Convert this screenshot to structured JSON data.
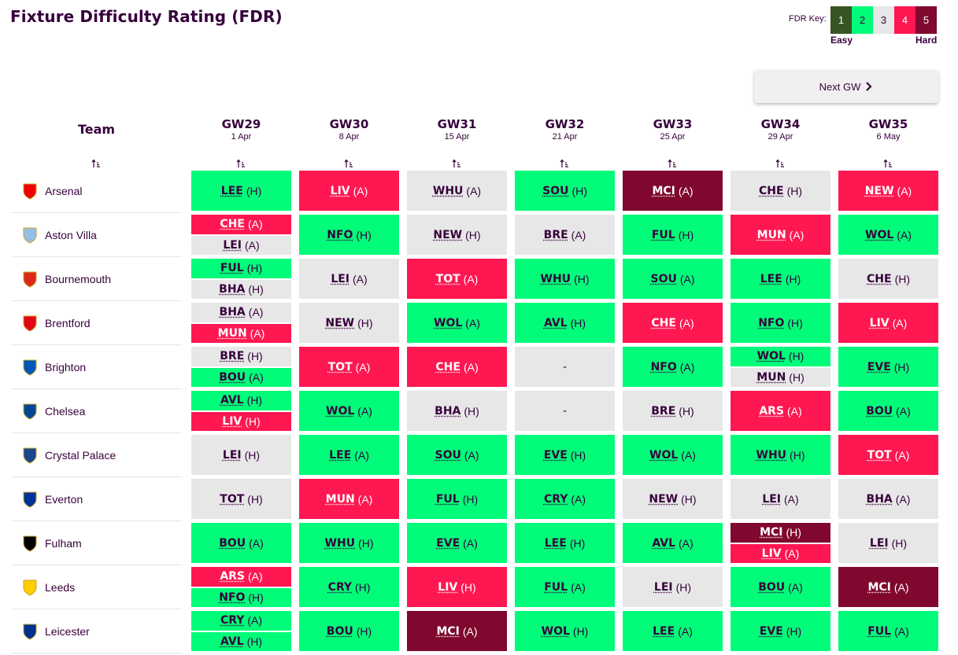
{
  "title": "Fixture Difficulty Rating (FDR)",
  "fdr_key": {
    "label": "FDR Key:",
    "levels": [
      "1",
      "2",
      "3",
      "4",
      "5"
    ],
    "colors": [
      "#375523",
      "#01fc7a",
      "#e7e7e7",
      "#ff1751",
      "#80072d"
    ],
    "easy_label": "Easy",
    "hard_label": "Hard"
  },
  "next_button": {
    "label": "Next GW",
    "icon": "chevron-right-icon"
  },
  "team_header": "Team",
  "gameweeks": [
    {
      "gw": "GW29",
      "date": "1 Apr"
    },
    {
      "gw": "GW30",
      "date": "8 Apr"
    },
    {
      "gw": "GW31",
      "date": "15 Apr"
    },
    {
      "gw": "GW32",
      "date": "21 Apr"
    },
    {
      "gw": "GW33",
      "date": "25 Apr"
    },
    {
      "gw": "GW34",
      "date": "29 Apr"
    },
    {
      "gw": "GW35",
      "date": "6 May"
    }
  ],
  "sort_icon": "sort-ascending-icon",
  "teams": [
    {
      "name": "Arsenal",
      "badge_color": "#ef0107",
      "fixtures": [
        [
          {
            "t": "LEE",
            "ha": "(H)",
            "d": 2
          }
        ],
        [
          {
            "t": "LIV",
            "ha": "(A)",
            "d": 4
          }
        ],
        [
          {
            "t": "WHU",
            "ha": "(A)",
            "d": 3
          }
        ],
        [
          {
            "t": "SOU",
            "ha": "(H)",
            "d": 2
          }
        ],
        [
          {
            "t": "MCI",
            "ha": "(A)",
            "d": 5
          }
        ],
        [
          {
            "t": "CHE",
            "ha": "(H)",
            "d": 3
          }
        ],
        [
          {
            "t": "NEW",
            "ha": "(A)",
            "d": 4
          }
        ]
      ]
    },
    {
      "name": "Aston Villa",
      "badge_color": "#95bfe5",
      "fixtures": [
        [
          {
            "t": "CHE",
            "ha": "(A)",
            "d": 4
          },
          {
            "t": "LEI",
            "ha": "(A)",
            "d": 3
          }
        ],
        [
          {
            "t": "NFO",
            "ha": "(H)",
            "d": 2
          }
        ],
        [
          {
            "t": "NEW",
            "ha": "(H)",
            "d": 3
          }
        ],
        [
          {
            "t": "BRE",
            "ha": "(A)",
            "d": 3
          }
        ],
        [
          {
            "t": "FUL",
            "ha": "(H)",
            "d": 2
          }
        ],
        [
          {
            "t": "MUN",
            "ha": "(A)",
            "d": 4
          }
        ],
        [
          {
            "t": "WOL",
            "ha": "(A)",
            "d": 2
          }
        ]
      ]
    },
    {
      "name": "Bournemouth",
      "badge_color": "#da291c",
      "fixtures": [
        [
          {
            "t": "FUL",
            "ha": "(H)",
            "d": 2
          },
          {
            "t": "BHA",
            "ha": "(H)",
            "d": 3
          }
        ],
        [
          {
            "t": "LEI",
            "ha": "(A)",
            "d": 3
          }
        ],
        [
          {
            "t": "TOT",
            "ha": "(A)",
            "d": 4
          }
        ],
        [
          {
            "t": "WHU",
            "ha": "(H)",
            "d": 2
          }
        ],
        [
          {
            "t": "SOU",
            "ha": "(A)",
            "d": 2
          }
        ],
        [
          {
            "t": "LEE",
            "ha": "(H)",
            "d": 2
          }
        ],
        [
          {
            "t": "CHE",
            "ha": "(H)",
            "d": 3
          }
        ]
      ]
    },
    {
      "name": "Brentford",
      "badge_color": "#e30613",
      "fixtures": [
        [
          {
            "t": "BHA",
            "ha": "(A)",
            "d": 3
          },
          {
            "t": "MUN",
            "ha": "(A)",
            "d": 4
          }
        ],
        [
          {
            "t": "NEW",
            "ha": "(H)",
            "d": 3
          }
        ],
        [
          {
            "t": "WOL",
            "ha": "(A)",
            "d": 2
          }
        ],
        [
          {
            "t": "AVL",
            "ha": "(H)",
            "d": 2
          }
        ],
        [
          {
            "t": "CHE",
            "ha": "(A)",
            "d": 4
          }
        ],
        [
          {
            "t": "NFO",
            "ha": "(H)",
            "d": 2
          }
        ],
        [
          {
            "t": "LIV",
            "ha": "(A)",
            "d": 4
          }
        ]
      ]
    },
    {
      "name": "Brighton",
      "badge_color": "#0057b8",
      "fixtures": [
        [
          {
            "t": "BRE",
            "ha": "(H)",
            "d": 3
          },
          {
            "t": "BOU",
            "ha": "(A)",
            "d": 2
          }
        ],
        [
          {
            "t": "TOT",
            "ha": "(A)",
            "d": 4
          }
        ],
        [
          {
            "t": "CHE",
            "ha": "(A)",
            "d": 4
          }
        ],
        [
          {
            "t": "-",
            "ha": "",
            "d": 3
          }
        ],
        [
          {
            "t": "NFO",
            "ha": "(A)",
            "d": 2
          }
        ],
        [
          {
            "t": "WOL",
            "ha": "(H)",
            "d": 2
          },
          {
            "t": "MUN",
            "ha": "(H)",
            "d": 3
          }
        ],
        [
          {
            "t": "EVE",
            "ha": "(H)",
            "d": 2
          }
        ]
      ]
    },
    {
      "name": "Chelsea",
      "badge_color": "#034694",
      "fixtures": [
        [
          {
            "t": "AVL",
            "ha": "(H)",
            "d": 2
          },
          {
            "t": "LIV",
            "ha": "(H)",
            "d": 4
          }
        ],
        [
          {
            "t": "WOL",
            "ha": "(A)",
            "d": 2
          }
        ],
        [
          {
            "t": "BHA",
            "ha": "(H)",
            "d": 3
          }
        ],
        [
          {
            "t": "-",
            "ha": "",
            "d": 3
          }
        ],
        [
          {
            "t": "BRE",
            "ha": "(H)",
            "d": 3
          }
        ],
        [
          {
            "t": "ARS",
            "ha": "(A)",
            "d": 4
          }
        ],
        [
          {
            "t": "BOU",
            "ha": "(A)",
            "d": 2
          }
        ]
      ]
    },
    {
      "name": "Crystal Palace",
      "badge_color": "#1b458f",
      "fixtures": [
        [
          {
            "t": "LEI",
            "ha": "(H)",
            "d": 3
          }
        ],
        [
          {
            "t": "LEE",
            "ha": "(A)",
            "d": 2
          }
        ],
        [
          {
            "t": "SOU",
            "ha": "(A)",
            "d": 2
          }
        ],
        [
          {
            "t": "EVE",
            "ha": "(H)",
            "d": 2
          }
        ],
        [
          {
            "t": "WOL",
            "ha": "(A)",
            "d": 2
          }
        ],
        [
          {
            "t": "WHU",
            "ha": "(H)",
            "d": 2
          }
        ],
        [
          {
            "t": "TOT",
            "ha": "(A)",
            "d": 4
          }
        ]
      ]
    },
    {
      "name": "Everton",
      "badge_color": "#003399",
      "fixtures": [
        [
          {
            "t": "TOT",
            "ha": "(H)",
            "d": 3
          }
        ],
        [
          {
            "t": "MUN",
            "ha": "(A)",
            "d": 4
          }
        ],
        [
          {
            "t": "FUL",
            "ha": "(H)",
            "d": 2
          }
        ],
        [
          {
            "t": "CRY",
            "ha": "(A)",
            "d": 2
          }
        ],
        [
          {
            "t": "NEW",
            "ha": "(H)",
            "d": 3
          }
        ],
        [
          {
            "t": "LEI",
            "ha": "(A)",
            "d": 3
          }
        ],
        [
          {
            "t": "BHA",
            "ha": "(A)",
            "d": 3
          }
        ]
      ]
    },
    {
      "name": "Fulham",
      "badge_color": "#000000",
      "fixtures": [
        [
          {
            "t": "BOU",
            "ha": "(A)",
            "d": 2
          }
        ],
        [
          {
            "t": "WHU",
            "ha": "(H)",
            "d": 2
          }
        ],
        [
          {
            "t": "EVE",
            "ha": "(A)",
            "d": 2
          }
        ],
        [
          {
            "t": "LEE",
            "ha": "(H)",
            "d": 2
          }
        ],
        [
          {
            "t": "AVL",
            "ha": "(A)",
            "d": 2
          }
        ],
        [
          {
            "t": "MCI",
            "ha": "(H)",
            "d": 5
          },
          {
            "t": "LIV",
            "ha": "(A)",
            "d": 4
          }
        ],
        [
          {
            "t": "LEI",
            "ha": "(H)",
            "d": 3
          }
        ]
      ]
    },
    {
      "name": "Leeds",
      "badge_color": "#ffcd00",
      "fixtures": [
        [
          {
            "t": "ARS",
            "ha": "(A)",
            "d": 4
          },
          {
            "t": "NFO",
            "ha": "(H)",
            "d": 2
          }
        ],
        [
          {
            "t": "CRY",
            "ha": "(H)",
            "d": 2
          }
        ],
        [
          {
            "t": "LIV",
            "ha": "(H)",
            "d": 4
          }
        ],
        [
          {
            "t": "FUL",
            "ha": "(A)",
            "d": 2
          }
        ],
        [
          {
            "t": "LEI",
            "ha": "(H)",
            "d": 3
          }
        ],
        [
          {
            "t": "BOU",
            "ha": "(A)",
            "d": 2
          }
        ],
        [
          {
            "t": "MCI",
            "ha": "(A)",
            "d": 5
          }
        ]
      ]
    },
    {
      "name": "Leicester",
      "badge_color": "#003090",
      "fixtures": [
        [
          {
            "t": "CRY",
            "ha": "(A)",
            "d": 2
          },
          {
            "t": "AVL",
            "ha": "(H)",
            "d": 2
          }
        ],
        [
          {
            "t": "BOU",
            "ha": "(H)",
            "d": 2
          }
        ],
        [
          {
            "t": "MCI",
            "ha": "(A)",
            "d": 5
          }
        ],
        [
          {
            "t": "WOL",
            "ha": "(H)",
            "d": 2
          }
        ],
        [
          {
            "t": "LEE",
            "ha": "(A)",
            "d": 2
          }
        ],
        [
          {
            "t": "EVE",
            "ha": "(H)",
            "d": 2
          }
        ],
        [
          {
            "t": "FUL",
            "ha": "(A)",
            "d": 2
          }
        ]
      ]
    }
  ]
}
